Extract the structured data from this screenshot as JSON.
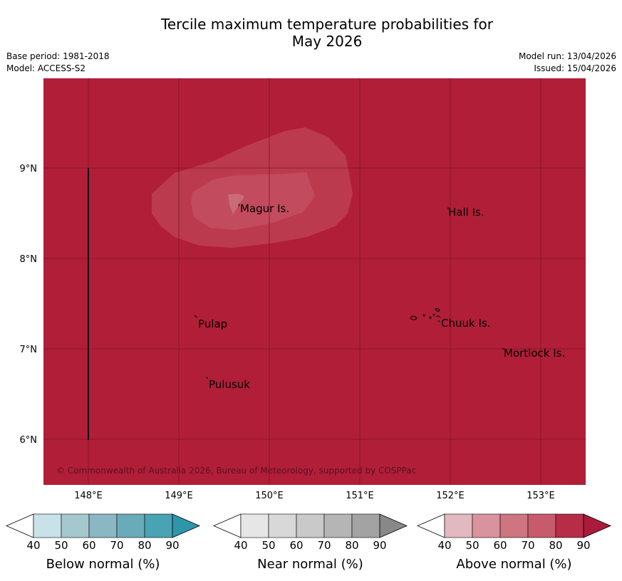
{
  "title_line1": "Tercile maximum temperature probabilities for",
  "title_line2": "May 2026",
  "base_period": "Base period: 1981-2018",
  "model": "Model: ACCESS-S2",
  "model_run": "Model run: 13/04/2026",
  "issued": "Issued: 15/04/2026",
  "copyright": "© Commonwealth of Australia 2026, Bureau of Meteorology, supported by COSPPac",
  "map": {
    "background_color": "#b11e38",
    "lat_labels": [
      "9°N",
      "8°N",
      "7°N",
      "6°N"
    ],
    "lon_labels": [
      "148°E",
      "149°E",
      "150°E",
      "151°E",
      "152°E",
      "153°E"
    ],
    "places": [
      {
        "name": "Magur Is."
      },
      {
        "name": "Hall Is."
      },
      {
        "name": "Pulap"
      },
      {
        "name": "Chuuk Is."
      },
      {
        "name": "Mortlock Is."
      },
      {
        "name": "Pulusuk"
      }
    ]
  },
  "legends": [
    {
      "label": "Below normal (%)",
      "ticks": [
        "40",
        "50",
        "60",
        "70",
        "80",
        "90"
      ],
      "colors": [
        "#ffffff",
        "#c9e1e9",
        "#a5c8cf",
        "#8ab7c3",
        "#6aabb9",
        "#48a3b3",
        "#2e96aa"
      ]
    },
    {
      "label": "Near normal (%)",
      "ticks": [
        "40",
        "50",
        "60",
        "70",
        "80",
        "90"
      ],
      "colors": [
        "#ffffff",
        "#e6e6e6",
        "#d8d8d8",
        "#c9c9c9",
        "#b5b5b5",
        "#a3a3a3",
        "#888888"
      ]
    },
    {
      "label": "Above normal (%)",
      "ticks": [
        "40",
        "50",
        "60",
        "70",
        "80",
        "90"
      ],
      "colors": [
        "#ffffff",
        "#e2b9c0",
        "#d9939f",
        "#cd7581",
        "#c65b6c",
        "#b72d48",
        "#aa1a3a"
      ]
    }
  ]
}
